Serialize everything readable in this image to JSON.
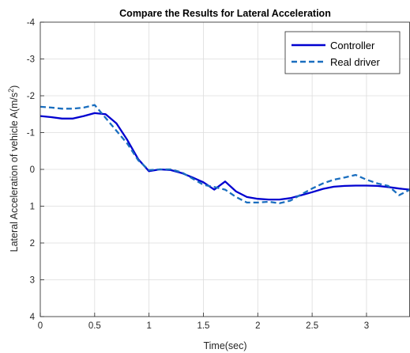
{
  "chart_data": {
    "type": "line",
    "title": "Compare the Results for Lateral Acceleration",
    "xlabel": "Time(sec)",
    "ylabel_prefix": "Lateral Acceleration of vehicle A(m/s",
    "ylabel_sup": "2",
    "ylabel_suffix": ")",
    "xlim": [
      0,
      3.4
    ],
    "ylim": [
      -4,
      4
    ],
    "y_reversed": true,
    "grid": true,
    "legend_position": "top-right",
    "x_ticks": [
      0,
      0.5,
      1,
      1.5,
      2,
      2.5,
      3
    ],
    "x_tick_labels": [
      "0",
      "0.5",
      "1",
      "1.5",
      "2",
      "2.5",
      "3"
    ],
    "y_ticks": [
      -4,
      -3,
      -2,
      -1,
      0,
      1,
      2,
      3,
      4
    ],
    "y_tick_labels": [
      "-4",
      "-3",
      "-2",
      "-1",
      "0",
      "1",
      "2",
      "3",
      "4"
    ],
    "series": [
      {
        "name": "Controller",
        "color": "#0000d0",
        "style": "solid",
        "x": [
          0,
          0.1,
          0.2,
          0.3,
          0.4,
          0.5,
          0.6,
          0.7,
          0.8,
          0.9,
          1.0,
          1.1,
          1.2,
          1.3,
          1.4,
          1.5,
          1.6,
          1.7,
          1.8,
          1.9,
          2.0,
          2.1,
          2.2,
          2.3,
          2.4,
          2.5,
          2.6,
          2.7,
          2.8,
          2.9,
          3.0,
          3.1,
          3.2,
          3.3,
          3.4
        ],
        "y": [
          -1.45,
          -1.42,
          -1.38,
          -1.38,
          -1.45,
          -1.53,
          -1.5,
          -1.25,
          -0.8,
          -0.28,
          0.05,
          0.0,
          0.02,
          0.1,
          0.22,
          0.35,
          0.55,
          0.33,
          0.6,
          0.75,
          0.8,
          0.82,
          0.82,
          0.78,
          0.7,
          0.62,
          0.53,
          0.47,
          0.45,
          0.44,
          0.44,
          0.45,
          0.48,
          0.52,
          0.55
        ]
      },
      {
        "name": "Real driver",
        "color": "#1a6ebf",
        "style": "dashed",
        "x": [
          0,
          0.1,
          0.2,
          0.3,
          0.4,
          0.5,
          0.6,
          0.7,
          0.8,
          0.9,
          1.0,
          1.1,
          1.2,
          1.3,
          1.4,
          1.5,
          1.6,
          1.7,
          1.8,
          1.9,
          2.0,
          2.1,
          2.2,
          2.3,
          2.4,
          2.5,
          2.6,
          2.7,
          2.8,
          2.9,
          3.0,
          3.1,
          3.2,
          3.3,
          3.4
        ],
        "y": [
          -1.7,
          -1.68,
          -1.65,
          -1.65,
          -1.68,
          -1.75,
          -1.4,
          -1.05,
          -0.7,
          -0.25,
          0.02,
          0.0,
          0.0,
          0.08,
          0.25,
          0.42,
          0.48,
          0.55,
          0.75,
          0.9,
          0.9,
          0.88,
          0.92,
          0.85,
          0.68,
          0.52,
          0.38,
          0.28,
          0.22,
          0.15,
          0.28,
          0.38,
          0.45,
          0.7,
          0.55
        ]
      }
    ]
  }
}
